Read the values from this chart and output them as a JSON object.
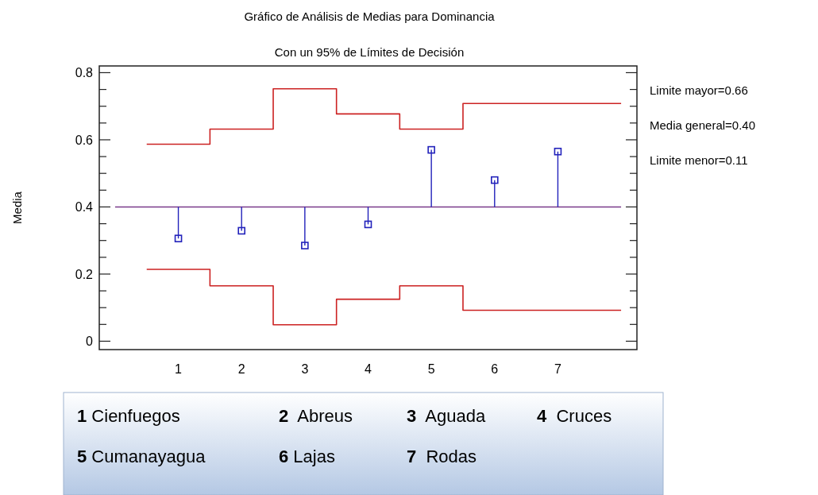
{
  "chart_data": {
    "type": "scatter",
    "title": "Gráfico de Análisis de Medias para Dominancia",
    "subtitle": "Con un 95% de Límites de Decisión",
    "ylabel": "Media",
    "xlim": [
      -0.25,
      8.25
    ],
    "xticks": [
      1,
      2,
      3,
      4,
      5,
      6,
      7
    ],
    "ylim": [
      -0.025,
      0.82
    ],
    "yticks": [
      0,
      {
        "value": 0.05,
        "label": null
      },
      {
        "value": 0.1,
        "label": null
      },
      {
        "value": 0.15,
        "label": null
      },
      0.2,
      {
        "value": 0.25,
        "label": null
      },
      {
        "value": 0.3,
        "label": null
      },
      {
        "value": 0.35,
        "label": null
      },
      0.4,
      {
        "value": 0.45,
        "label": null
      },
      {
        "value": 0.5,
        "label": null
      },
      {
        "value": 0.55,
        "label": null
      },
      0.6,
      {
        "value": 0.65,
        "label": null
      },
      {
        "value": 0.7,
        "label": null
      },
      {
        "value": 0.75,
        "label": null
      },
      0.8
    ],
    "grid": false,
    "series": [
      {
        "type": "step",
        "color": "#cc2222",
        "x": [
          0.5,
          1.5,
          2.5,
          3.5,
          4.5,
          5.5,
          8.0
        ],
        "values": [
          0.587,
          0.632,
          0.752,
          0.677,
          0.632,
          0.708,
          0.708
        ]
      },
      {
        "type": "step",
        "color": "#cc2222",
        "x": [
          0.5,
          1.5,
          2.5,
          3.5,
          4.5,
          5.5,
          8.0
        ],
        "values": [
          0.214,
          0.165,
          0.049,
          0.125,
          0.165,
          0.092,
          0.092
        ]
      },
      {
        "type": "line",
        "color": "#7a3a8a",
        "x": [
          0,
          8
        ],
        "values": [
          0.4,
          0.4
        ]
      },
      {
        "color": "#2222bb",
        "marker": "square",
        "x": [
          1,
          2,
          3,
          4,
          5,
          6,
          7
        ],
        "values": [
          0.306,
          0.329,
          0.285,
          0.348,
          0.57,
          0.48,
          0.565
        ],
        "errors": [
          [
            0.306,
            0.4
          ],
          [
            0.329,
            0.4
          ],
          [
            0.285,
            0.4
          ],
          [
            0.348,
            0.4
          ],
          [
            0.4,
            0.57
          ],
          [
            0.4,
            0.48
          ],
          [
            0.4,
            0.565
          ]
        ]
      }
    ],
    "annotations": [
      "Limite mayor=0.66",
      "Media general=0.40",
      "Limite menor=0.11",
      "1 Cienfuegos",
      "2  Abreus",
      "3  Aguada",
      "4  Cruces",
      "5 Cumanayagua",
      "6 Lajas",
      "7  Rodas"
    ]
  }
}
